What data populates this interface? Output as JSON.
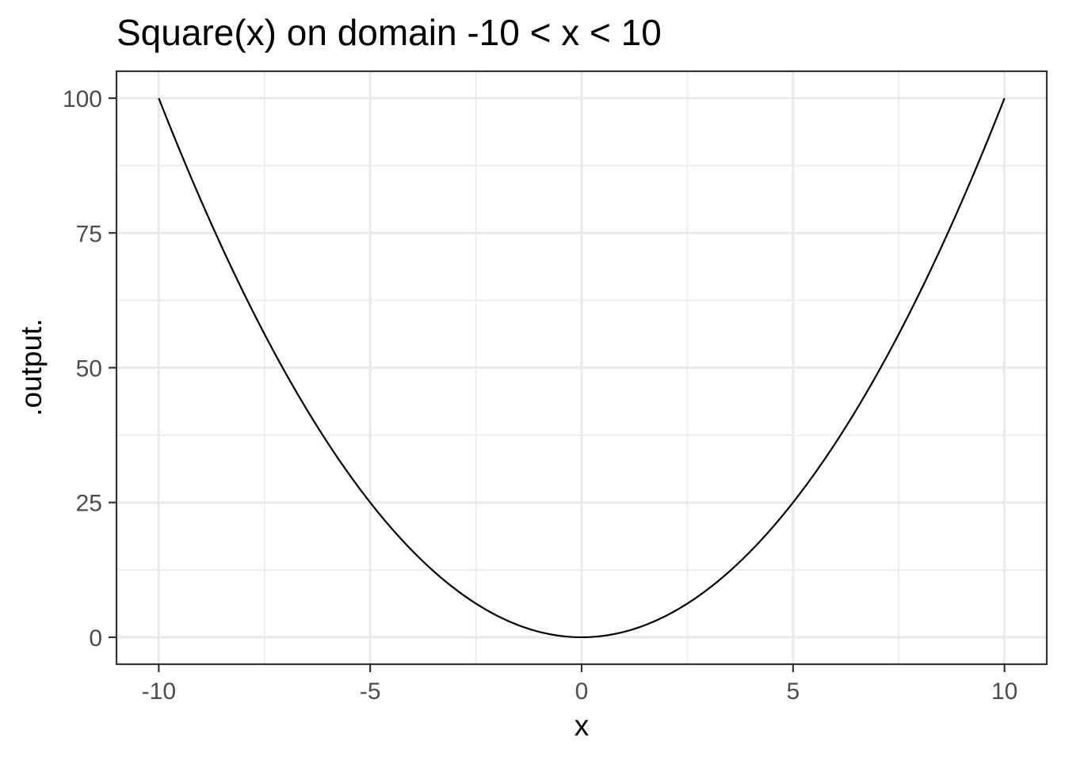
{
  "chart_data": {
    "type": "line",
    "title": "Square(x) on domain -10 < x < 10",
    "xlabel": "x",
    "ylabel": ".output.",
    "xlim": [
      -11,
      11
    ],
    "ylim": [
      -5,
      105
    ],
    "x_ticks": [
      -10,
      -5,
      0,
      5,
      10
    ],
    "x_tick_labels": [
      "-10",
      "-5",
      "0",
      "5",
      "10"
    ],
    "y_ticks": [
      0,
      25,
      50,
      75,
      100
    ],
    "y_tick_labels": [
      "0",
      "25",
      "50",
      "75",
      "100"
    ],
    "x_minor_ticks": [
      -7.5,
      -2.5,
      2.5,
      7.5
    ],
    "y_minor_ticks": [
      12.5,
      37.5,
      62.5,
      87.5
    ],
    "grid": true,
    "series": [
      {
        "color": "#000000",
        "x": [
          -10,
          -9,
          -8,
          -7,
          -6,
          -5,
          -4,
          -3,
          -2,
          -1,
          0,
          1,
          2,
          3,
          4,
          5,
          6,
          7,
          8,
          9,
          10
        ],
        "y": [
          100,
          81,
          64,
          49,
          36,
          25,
          16,
          9,
          4,
          1,
          0,
          1,
          4,
          9,
          16,
          25,
          36,
          49,
          64,
          81,
          100
        ]
      }
    ]
  }
}
